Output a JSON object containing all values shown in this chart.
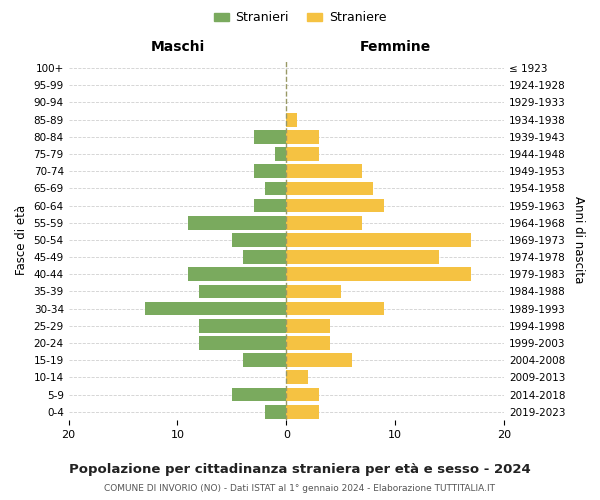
{
  "age_groups": [
    "0-4",
    "5-9",
    "10-14",
    "15-19",
    "20-24",
    "25-29",
    "30-34",
    "35-39",
    "40-44",
    "45-49",
    "50-54",
    "55-59",
    "60-64",
    "65-69",
    "70-74",
    "75-79",
    "80-84",
    "85-89",
    "90-94",
    "95-99",
    "100+"
  ],
  "birth_years": [
    "2019-2023",
    "2014-2018",
    "2009-2013",
    "2004-2008",
    "1999-2003",
    "1994-1998",
    "1989-1993",
    "1984-1988",
    "1979-1983",
    "1974-1978",
    "1969-1973",
    "1964-1968",
    "1959-1963",
    "1954-1958",
    "1949-1953",
    "1944-1948",
    "1939-1943",
    "1934-1938",
    "1929-1933",
    "1924-1928",
    "≤ 1923"
  ],
  "maschi": [
    2,
    5,
    0,
    4,
    8,
    8,
    13,
    8,
    9,
    4,
    5,
    9,
    3,
    2,
    3,
    1,
    3,
    0,
    0,
    0,
    0
  ],
  "femmine": [
    3,
    3,
    2,
    6,
    4,
    4,
    9,
    5,
    17,
    14,
    17,
    7,
    9,
    8,
    7,
    3,
    3,
    1,
    0,
    0,
    0
  ],
  "color_maschi": "#7aaa5e",
  "color_femmine": "#f5c242",
  "xlim": 20,
  "title": "Popolazione per cittadinanza straniera per età e sesso - 2024",
  "subtitle": "COMUNE DI INVORIO (NO) - Dati ISTAT al 1° gennaio 2024 - Elaborazione TUTTITALIA.IT",
  "label_maschi": "Stranieri",
  "label_femmine": "Straniere",
  "ylabel_left": "Fasce di età",
  "ylabel_right": "Anni di nascita",
  "xlabel_left": "Maschi",
  "xlabel_right": "Femmine",
  "bg_color": "#ffffff",
  "grid_color": "#d0d0d0"
}
